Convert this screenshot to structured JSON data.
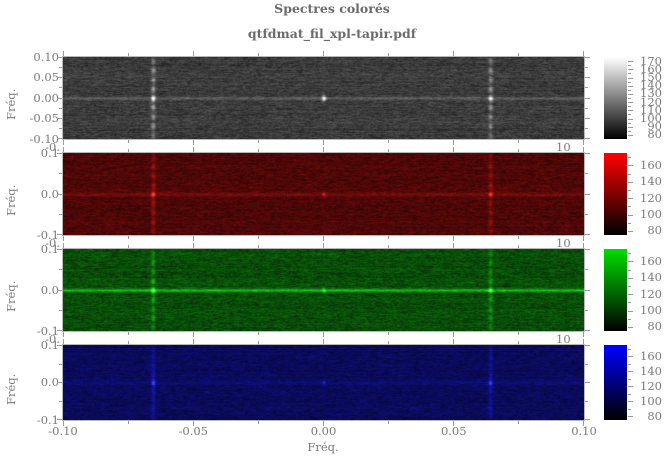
{
  "title": "Spectres colorés",
  "subtitle": "qtfdmat_fil_xpl-tapir.pdf",
  "colors": {
    "text": "#7b7b7b",
    "tick": "#9a9a9a",
    "background": "#ffffff",
    "gray_panel_base": "#3a3a3a",
    "red_panel_base": "#4c0808",
    "green_panel_base": "#084a08",
    "blue_panel_base": "#080858"
  },
  "axis": {
    "x_label": "Fréq.",
    "y_label": "Fréq.",
    "x_tick_labels": [
      "-0.10",
      "-0.05",
      "0.00",
      "0.05",
      "0.10"
    ],
    "gap_left_fragment": "-0.",
    "gap_right_fragment": "10"
  },
  "panels": [
    {
      "id": "gray",
      "channel": "gray",
      "y_tick_labels": [
        "0.10",
        "0.05",
        "0.00",
        "-0.05",
        "-0.10"
      ]
    },
    {
      "id": "red",
      "channel": "red",
      "y_tick_labels": [
        "0.1",
        "0.0",
        "-0.1"
      ]
    },
    {
      "id": "green",
      "channel": "green",
      "y_tick_labels": [
        "0.1",
        "0.0",
        "-0.1"
      ]
    },
    {
      "id": "blue",
      "channel": "blue",
      "y_tick_labels": [
        "0.1",
        "0.0",
        "-0.1"
      ]
    }
  ],
  "colorbars": [
    {
      "id": "gray",
      "top_color": "#ffffff",
      "bottom_color": "#000000",
      "labels": [
        "170",
        "160",
        "150",
        "140",
        "130",
        "120",
        "110",
        "100",
        "90",
        "80"
      ]
    },
    {
      "id": "red",
      "top_color": "#ff0000",
      "bottom_color": "#000000",
      "labels": [
        "160",
        "140",
        "120",
        "100",
        "80"
      ]
    },
    {
      "id": "green",
      "top_color": "#00dd00",
      "bottom_color": "#000000",
      "labels": [
        "160",
        "140",
        "120",
        "100",
        "80"
      ]
    },
    {
      "id": "blue",
      "top_color": "#0000ff",
      "bottom_color": "#000000",
      "labels": [
        "160",
        "140",
        "120",
        "100",
        "80"
      ]
    }
  ],
  "chart_data": {
    "type": "heatmap",
    "title": "Spectres colorés",
    "subtitle": "qtfdmat_fil_xpl-tapir.pdf",
    "layout": "4 stacked spectrogram panels sharing one x axis, each with its own colorbar on the right",
    "panels": [
      {
        "name": "gray-channel spectrum",
        "colormap": "grayscale white-to-black",
        "xlabel": "Fréq.",
        "ylabel": "Fréq.",
        "x_range": [
          -0.1,
          0.1
        ],
        "y_range": [
          -0.1,
          0.1
        ],
        "x_tick_step": 0.05,
        "x_minor_tick_step": 0.025,
        "y_tick_labels": [
          0.1,
          0.05,
          0.0,
          -0.05,
          -0.1
        ],
        "colorbar_range": [
          75,
          175
        ],
        "colorbar_ticks": [
          170,
          160,
          150,
          140,
          130,
          120,
          110,
          100,
          90,
          80
        ],
        "content": "speckle noise floor ~100 with bright harmonic spot clusters along vertical lines at x≈-0.066 and x≈+0.065 (spots at y≈0, ±0.022, ±0.045, ±0.07, ±0.09), weak bright spot at x=0 y=0, faint horizontal line at y=0"
      },
      {
        "name": "red-channel spectrum",
        "colormap": "red-to-black",
        "xlabel": "Fréq.",
        "ylabel": "Fréq.",
        "x_range": [
          -0.1,
          0.1
        ],
        "y_range": [
          -0.1,
          0.1
        ],
        "y_tick_labels": [
          0.1,
          0.0,
          -0.1
        ],
        "colorbar_range": [
          75,
          175
        ],
        "colorbar_ticks": [
          160,
          140,
          120,
          100,
          80
        ],
        "content": "dark red noise floor, bright red spot clusters at x≈±0.065, faint horizontal line at y=0"
      },
      {
        "name": "green-channel spectrum",
        "colormap": "green-to-black",
        "xlabel": "Fréq.",
        "ylabel": "Fréq.",
        "x_range": [
          -0.1,
          0.1
        ],
        "y_range": [
          -0.1,
          0.1
        ],
        "y_tick_labels": [
          0.1,
          0.0,
          -0.1
        ],
        "colorbar_range": [
          75,
          175
        ],
        "colorbar_ticks": [
          160,
          140,
          120,
          100,
          80
        ],
        "content": "dark green noise floor, bright green spot clusters at x≈±0.065, strong bright horizontal line across y=0"
      },
      {
        "name": "blue-channel spectrum",
        "colormap": "blue-to-black",
        "xlabel": "Fréq.",
        "ylabel": "Fréq.",
        "x_range": [
          -0.1,
          0.1
        ],
        "y_range": [
          -0.1,
          0.1
        ],
        "y_tick_labels": [
          0.1,
          0.0,
          -0.1
        ],
        "colorbar_range": [
          75,
          175
        ],
        "colorbar_ticks": [
          160,
          140,
          120,
          100,
          80
        ],
        "content": "dark blue noise floor, diffuse blue spot clusters at x≈±0.065, faint horizontal line at y=0"
      }
    ]
  }
}
